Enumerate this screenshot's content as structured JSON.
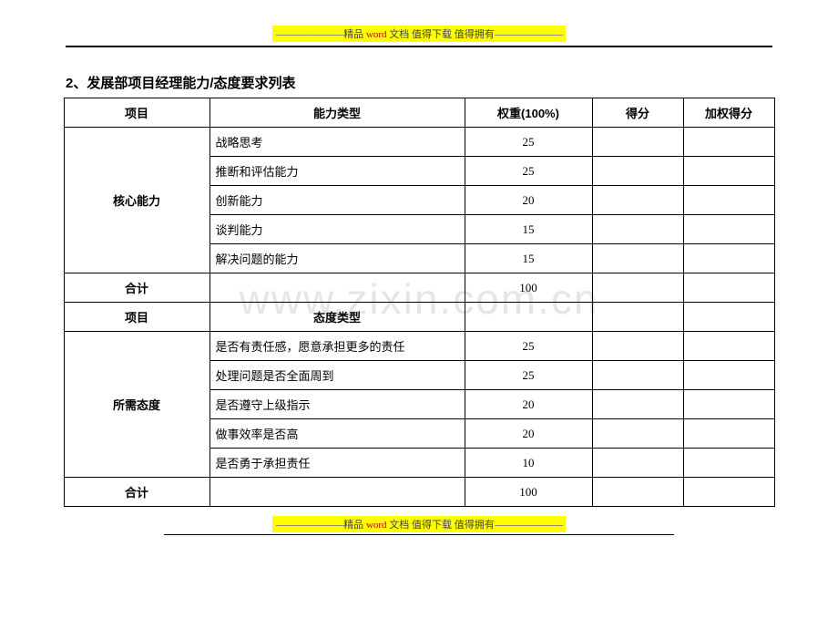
{
  "banner": {
    "dashes": "----------------------------",
    "prefix": "精品",
    "word": " word ",
    "mid": "文档 值得下载 值得拥有"
  },
  "watermark": "www.zixin.com.cn",
  "title": "2、发展部项目经理能力/态度要求列表",
  "headers": {
    "col1": "项目",
    "col2_ability": "能力类型",
    "col2_attitude": "态度类型",
    "col3": "权重(100%)",
    "col4": "得分",
    "col5": "加权得分",
    "subtotal": "合计"
  },
  "groups": {
    "ability": {
      "label": "核心能力",
      "rows": [
        {
          "name": "战略思考",
          "weight": "25"
        },
        {
          "name": "推断和评估能力",
          "weight": "25"
        },
        {
          "name": "创新能力",
          "weight": "20"
        },
        {
          "name": "谈判能力",
          "weight": "15"
        },
        {
          "name": "解决问题的能力",
          "weight": "15"
        }
      ],
      "total": "100"
    },
    "attitude": {
      "label": "所需态度",
      "rows": [
        {
          "name": "是否有责任感，愿意承担更多的责任",
          "weight": "25"
        },
        {
          "name": "处理问题是否全面周到",
          "weight": "25"
        },
        {
          "name": "是否遵守上级指示",
          "weight": "20"
        },
        {
          "name": "做事效率是否高",
          "weight": "20"
        },
        {
          "name": "是否勇于承担责任",
          "weight": "10"
        }
      ],
      "total": "100"
    }
  }
}
